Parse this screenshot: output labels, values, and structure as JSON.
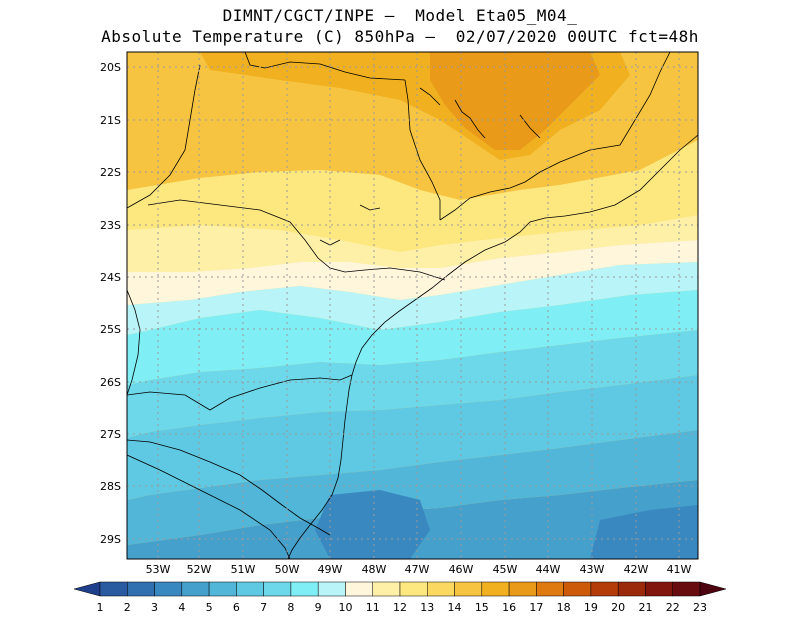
{
  "title": {
    "line1": "DIMNT/CGCT/INPE –  Model Eta05_M04_",
    "line2": "Absolute Temperature (C) 850hPa –  02/07/2020 00UTC fct=48h"
  },
  "map": {
    "lat_labels": [
      "20S",
      "21S",
      "22S",
      "23S",
      "24S",
      "25S",
      "26S",
      "27S",
      "28S",
      "29S"
    ],
    "lon_labels": [
      "53W",
      "52W",
      "51W",
      "50W",
      "49W",
      "48W",
      "47W",
      "46W",
      "45W",
      "44W",
      "43W",
      "42W",
      "41W"
    ],
    "gridlines": "dotted",
    "variable": "temperature_850hPa_C"
  },
  "colorbar": {
    "labels": [
      "1",
      "2",
      "3",
      "4",
      "5",
      "6",
      "7",
      "8",
      "9",
      "10",
      "11",
      "12",
      "13",
      "14",
      "15",
      "16",
      "17",
      "18",
      "19",
      "20",
      "21",
      "22",
      "23"
    ],
    "colors": [
      "#1f3f8c",
      "#2a5aa0",
      "#3070b0",
      "#3a88c0",
      "#45a0cc",
      "#52b6d8",
      "#5fc8e2",
      "#6cd8ea",
      "#80eef5",
      "#b8f4f8",
      "#fff6dc",
      "#fff0a8",
      "#fde880",
      "#fbd860",
      "#f6c440",
      "#f0b020",
      "#e89a18",
      "#de7a10",
      "#cc5a08",
      "#b43c08",
      "#9a2a0a",
      "#80160c",
      "#680c10",
      "#4e0410"
    ]
  },
  "colors": {
    "coast": "#000000",
    "grid": "#9a9a9a"
  }
}
